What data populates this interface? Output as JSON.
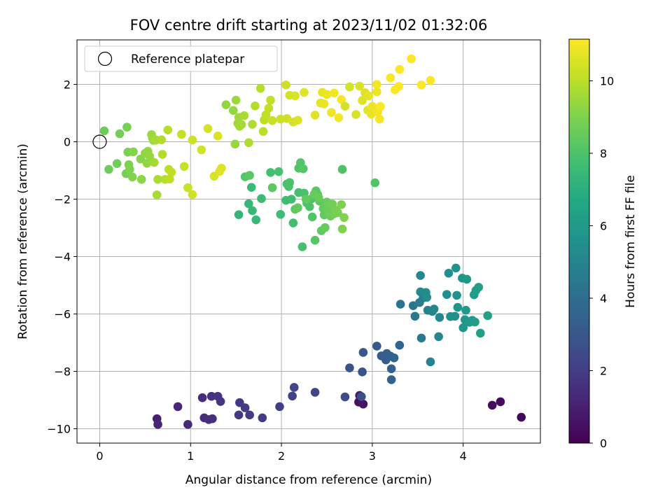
{
  "chart_data": {
    "type": "scatter",
    "title": "FOV centre drift starting at 2023/11/02 01:32:06",
    "xlabel": "Angular distance from reference (arcmin)",
    "ylabel": "Rotation from reference (arcmin)",
    "xlim": [
      -0.25,
      4.85
    ],
    "ylim": [
      -10.5,
      3.55
    ],
    "xticks": [
      0,
      1,
      2,
      3,
      4
    ],
    "yticks": [
      -10,
      -8,
      -6,
      -4,
      -2,
      0,
      2
    ],
    "grid": true,
    "colormap": "viridis",
    "colorbar": {
      "label": "Hours from first FF file",
      "range": [
        0,
        11.15
      ],
      "ticks": [
        0,
        2,
        4,
        6,
        8,
        10
      ]
    },
    "legend": {
      "location": "upper-left",
      "entries": [
        "Reference platepar"
      ]
    },
    "reference_point": {
      "x": 0,
      "y": 0
    },
    "series": [
      {
        "points": [
          [
            4.64,
            -9.6,
            0.2
          ],
          [
            4.41,
            -9.06,
            0.3
          ],
          [
            4.32,
            -9.18,
            0.35
          ],
          [
            2.85,
            -9.07,
            0.5
          ],
          [
            2.9,
            -9.14,
            0.6
          ],
          [
            2.86,
            -8.84,
            0.7
          ],
          [
            0.63,
            -9.65,
            1.0
          ],
          [
            0.64,
            -9.85,
            1.1
          ],
          [
            0.86,
            -9.23,
            1.2
          ],
          [
            0.97,
            -9.85,
            1.3
          ],
          [
            1.13,
            -8.92,
            1.4
          ],
          [
            1.15,
            -9.62,
            1.45
          ],
          [
            1.2,
            -9.68,
            1.5
          ],
          [
            1.24,
            -9.65,
            1.55
          ],
          [
            1.23,
            -8.87,
            1.6
          ],
          [
            1.3,
            -8.87,
            1.65
          ],
          [
            1.33,
            -9.05,
            1.7
          ],
          [
            1.53,
            -9.52,
            1.8
          ],
          [
            1.54,
            -9.09,
            1.85
          ],
          [
            1.6,
            -9.27,
            1.9
          ],
          [
            1.65,
            -9.52,
            1.95
          ],
          [
            1.79,
            -9.62,
            2.0
          ],
          [
            1.98,
            -9.23,
            2.1
          ],
          [
            2.12,
            -8.86,
            2.2
          ],
          [
            2.14,
            -8.56,
            2.3
          ],
          [
            2.37,
            -8.73,
            2.35
          ],
          [
            2.7,
            -8.89,
            2.5
          ],
          [
            2.88,
            -8.88,
            2.6
          ],
          [
            2.75,
            -7.88,
            2.8
          ],
          [
            2.89,
            -8.02,
            2.9
          ],
          [
            2.9,
            -7.34,
            3.0
          ],
          [
            3.05,
            -7.12,
            3.1
          ],
          [
            3.1,
            -7.46,
            3.2
          ],
          [
            3.15,
            -7.6,
            3.25
          ],
          [
            3.16,
            -7.38,
            3.3
          ],
          [
            3.2,
            -7.47,
            3.35
          ],
          [
            3.21,
            -7.91,
            3.4
          ],
          [
            3.21,
            -8.29,
            3.45
          ],
          [
            3.24,
            -7.53,
            3.5
          ],
          [
            3.3,
            -7.09,
            3.6
          ],
          [
            3.31,
            -5.66,
            4.2
          ],
          [
            3.45,
            -5.71,
            4.3
          ],
          [
            3.47,
            -6.08,
            4.4
          ],
          [
            3.54,
            -6.84,
            4.5
          ],
          [
            3.52,
            -5.6,
            4.6
          ],
          [
            3.56,
            -5.44,
            4.7
          ],
          [
            3.61,
            -5.87,
            4.8
          ],
          [
            3.64,
            -7.67,
            4.9
          ],
          [
            3.66,
            -5.91,
            5.0
          ],
          [
            3.68,
            -5.83,
            5.05
          ],
          [
            3.73,
            -6.79,
            5.1
          ],
          [
            3.74,
            -6.12,
            5.15
          ],
          [
            3.53,
            -4.66,
            5.2
          ],
          [
            3.53,
            -5.23,
            5.25
          ],
          [
            3.59,
            -5.25,
            5.3
          ],
          [
            3.6,
            -5.42,
            5.35
          ],
          [
            3.82,
            -5.32,
            5.4
          ],
          [
            3.86,
            -6.09,
            5.45
          ],
          [
            3.91,
            -6.08,
            5.5
          ],
          [
            3.84,
            -4.58,
            5.55
          ],
          [
            3.92,
            -4.4,
            5.6
          ],
          [
            3.93,
            -5.35,
            5.65
          ],
          [
            3.94,
            -5.77,
            5.7
          ],
          [
            3.99,
            -4.75,
            5.75
          ],
          [
            4.0,
            -6.48,
            5.8
          ],
          [
            4.02,
            -6.2,
            5.85
          ],
          [
            4.03,
            -5.87,
            5.9
          ],
          [
            4.04,
            -4.79,
            5.95
          ],
          [
            4.07,
            -6.29,
            6.0
          ],
          [
            4.1,
            -6.22,
            6.05
          ],
          [
            4.12,
            -5.33,
            6.1
          ],
          [
            4.13,
            -6.28,
            6.15
          ],
          [
            4.14,
            -5.18,
            6.2
          ],
          [
            4.17,
            -5.07,
            6.25
          ],
          [
            4.19,
            -6.67,
            6.3
          ],
          [
            4.27,
            -6.06,
            6.35
          ],
          [
            1.53,
            -2.54,
            7.3
          ],
          [
            1.64,
            -2.16,
            7.35
          ],
          [
            1.68,
            -2.4,
            7.4
          ],
          [
            1.72,
            -2.72,
            7.45
          ],
          [
            1.78,
            -1.98,
            7.5
          ],
          [
            1.67,
            -1.59,
            7.55
          ],
          [
            1.99,
            -2.53,
            7.6
          ],
          [
            2.05,
            -2.04,
            7.65
          ],
          [
            2.11,
            -2.0,
            7.7
          ],
          [
            2.13,
            -2.83,
            7.75
          ],
          [
            2.19,
            -1.77,
            7.8
          ],
          [
            2.23,
            -3.66,
            7.85
          ],
          [
            2.25,
            -1.79,
            7.9
          ],
          [
            2.28,
            -2.13,
            7.95
          ],
          [
            2.31,
            -2.26,
            8.0
          ],
          [
            2.33,
            -1.99,
            8.05
          ],
          [
            2.34,
            -2.62,
            8.1
          ],
          [
            2.37,
            -3.43,
            8.15
          ],
          [
            2.38,
            -1.71,
            8.2
          ],
          [
            2.4,
            -1.84,
            8.25
          ],
          [
            2.42,
            -2.07,
            8.3
          ],
          [
            2.44,
            -3.1,
            8.35
          ],
          [
            2.46,
            -2.33,
            8.4
          ],
          [
            2.47,
            -2.55,
            8.45
          ],
          [
            2.48,
            -2.99,
            8.5
          ],
          [
            2.5,
            -2.1,
            8.55
          ],
          [
            2.51,
            -2.43,
            8.6
          ],
          [
            2.52,
            -2.28,
            8.65
          ],
          [
            2.54,
            -2.59,
            8.7
          ],
          [
            2.56,
            -2.17,
            8.75
          ],
          [
            2.58,
            -2.51,
            8.8
          ],
          [
            2.6,
            -2.39,
            8.85
          ],
          [
            2.62,
            -2.47,
            8.9
          ],
          [
            2.66,
            -2.19,
            8.95
          ],
          [
            2.67,
            -3.04,
            9.0
          ],
          [
            2.69,
            -2.64,
            9.05
          ],
          [
            2.67,
            -0.96,
            8.0
          ],
          [
            3.03,
            -1.43,
            8.1
          ],
          [
            1.88,
            -1.07,
            7.8
          ],
          [
            1.97,
            -1.04,
            7.85
          ],
          [
            2.06,
            -1.47,
            7.9
          ],
          [
            2.08,
            -1.56,
            7.95
          ],
          [
            2.09,
            -1.42,
            8.0
          ],
          [
            2.19,
            -0.92,
            8.05
          ],
          [
            2.21,
            -0.73,
            8.1
          ],
          [
            2.24,
            -0.94,
            8.15
          ],
          [
            1.6,
            -1.22,
            8.2
          ],
          [
            1.65,
            -1.17,
            8.25
          ],
          [
            1.9,
            -1.6,
            8.3
          ],
          [
            2.15,
            -2.35,
            8.35
          ],
          [
            2.18,
            -2.3,
            8.4
          ],
          [
            2.27,
            -2.0,
            8.45
          ],
          [
            2.36,
            -1.83,
            8.5
          ],
          [
            2.41,
            -1.95,
            8.55
          ],
          [
            0.05,
            0.38,
            8.6
          ],
          [
            0.1,
            -0.96,
            8.65
          ],
          [
            0.19,
            -0.76,
            8.7
          ],
          [
            0.22,
            0.28,
            8.75
          ],
          [
            0.29,
            -1.11,
            8.8
          ],
          [
            0.3,
            0.51,
            8.85
          ],
          [
            0.31,
            -0.36,
            8.9
          ],
          [
            0.32,
            -0.8,
            8.95
          ],
          [
            0.33,
            -0.96,
            9.0
          ],
          [
            0.36,
            -1.23,
            9.05
          ],
          [
            0.37,
            -0.35,
            9.1
          ],
          [
            0.45,
            -0.6,
            9.15
          ],
          [
            0.46,
            -1.31,
            9.2
          ],
          [
            0.5,
            -0.4,
            9.25
          ],
          [
            0.52,
            -0.75,
            9.3
          ],
          [
            0.53,
            -0.33,
            9.35
          ],
          [
            0.55,
            -0.51,
            9.4
          ],
          [
            0.57,
            0.25,
            9.45
          ],
          [
            0.58,
            0.13,
            9.5
          ],
          [
            0.59,
            0.05,
            9.55
          ],
          [
            0.6,
            -0.72,
            9.6
          ],
          [
            0.62,
            0.06,
            9.65
          ],
          [
            0.63,
            -1.85,
            9.7
          ],
          [
            0.64,
            -1.31,
            9.75
          ],
          [
            0.68,
            0.07,
            9.8
          ],
          [
            0.69,
            -0.44,
            9.85
          ],
          [
            0.72,
            -1.31,
            9.9
          ],
          [
            0.75,
            0.41,
            9.95
          ],
          [
            0.76,
            -0.96,
            10.0
          ],
          [
            0.77,
            -1.3,
            10.05
          ],
          [
            0.79,
            -1.06,
            10.1
          ],
          [
            0.9,
            0.26,
            10.15
          ],
          [
            0.93,
            -0.86,
            10.2
          ],
          [
            0.97,
            -1.6,
            10.25
          ],
          [
            1.02,
            0.06,
            10.3
          ],
          [
            1.02,
            -1.84,
            10.35
          ],
          [
            1.12,
            -0.28,
            10.4
          ],
          [
            1.19,
            0.46,
            10.45
          ],
          [
            1.26,
            -1.2,
            10.5
          ],
          [
            1.3,
            0.2,
            10.55
          ],
          [
            1.32,
            -1.03,
            10.6
          ],
          [
            1.34,
            -0.92,
            10.65
          ],
          [
            1.39,
            1.29,
            9.3
          ],
          [
            1.47,
            1.09,
            9.35
          ],
          [
            1.49,
            -0.08,
            9.4
          ],
          [
            1.5,
            1.45,
            9.45
          ],
          [
            1.52,
            0.64,
            9.5
          ],
          [
            1.53,
            0.85,
            9.55
          ],
          [
            1.54,
            0.54,
            9.6
          ],
          [
            1.56,
            0.6,
            9.65
          ],
          [
            1.59,
            0.91,
            9.7
          ],
          [
            1.64,
            -0.03,
            9.75
          ],
          [
            1.68,
            0.61,
            9.8
          ],
          [
            1.71,
            1.25,
            9.85
          ],
          [
            1.77,
            1.86,
            9.9
          ],
          [
            1.8,
            0.36,
            9.95
          ],
          [
            1.81,
            0.76,
            10.0
          ],
          [
            1.83,
            0.94,
            10.05
          ],
          [
            1.86,
            1.17,
            10.1
          ],
          [
            1.88,
            1.45,
            10.15
          ],
          [
            1.9,
            0.74,
            10.2
          ],
          [
            1.99,
            0.79,
            10.25
          ],
          [
            2.05,
            1.98,
            10.3
          ],
          [
            2.06,
            0.81,
            10.35
          ],
          [
            2.09,
            1.62,
            10.4
          ],
          [
            2.13,
            0.69,
            10.45
          ],
          [
            2.15,
            1.6,
            10.5
          ],
          [
            2.18,
            0.75,
            10.55
          ],
          [
            2.25,
            1.72,
            10.6
          ],
          [
            2.37,
            0.93,
            10.65
          ],
          [
            2.43,
            1.35,
            10.7
          ],
          [
            2.45,
            1.72,
            10.75
          ],
          [
            2.47,
            1.32,
            10.8
          ],
          [
            2.5,
            1.65,
            10.85
          ],
          [
            2.55,
            1.02,
            10.9
          ],
          [
            2.58,
            1.7,
            10.95
          ],
          [
            2.63,
            0.84,
            11.0
          ],
          [
            2.66,
            1.47,
            11.05
          ],
          [
            2.7,
            1.24,
            10.4
          ],
          [
            2.75,
            1.91,
            10.45
          ],
          [
            2.82,
            0.95,
            10.5
          ],
          [
            2.86,
            1.94,
            10.55
          ],
          [
            2.89,
            1.44,
            10.6
          ],
          [
            2.92,
            1.71,
            10.65
          ],
          [
            2.95,
            1.1,
            10.7
          ],
          [
            2.96,
            1.6,
            10.75
          ],
          [
            2.99,
            0.96,
            10.8
          ],
          [
            3.0,
            1.23,
            10.85
          ],
          [
            3.05,
            1.74,
            10.9
          ],
          [
            3.05,
            2.0,
            10.95
          ],
          [
            3.06,
            1.04,
            11.0
          ],
          [
            3.08,
            0.79,
            11.05
          ],
          [
            3.09,
            1.23,
            11.1
          ],
          [
            3.2,
            2.23,
            11.1
          ],
          [
            3.25,
            1.81,
            11.12
          ],
          [
            3.29,
            1.93,
            11.12
          ],
          [
            3.3,
            2.52,
            11.13
          ],
          [
            3.43,
            2.89,
            11.14
          ],
          [
            3.54,
            1.98,
            11.14
          ],
          [
            3.64,
            2.14,
            11.15
          ]
        ]
      }
    ]
  }
}
